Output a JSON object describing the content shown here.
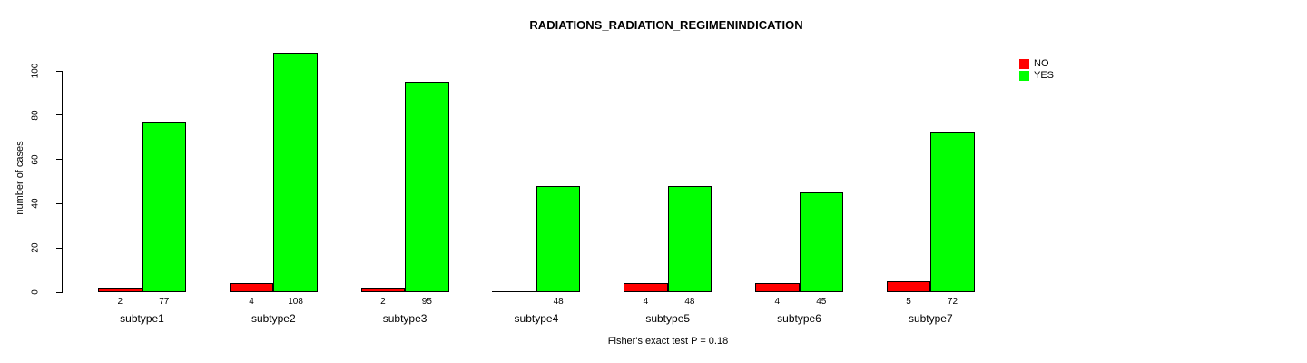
{
  "chart_data": {
    "type": "bar",
    "title": "RADIATIONS_RADIATION_REGIMENINDICATION",
    "ylabel": "number of cases",
    "ylim": [
      0,
      108
    ],
    "yticks": [
      0,
      20,
      40,
      60,
      80,
      100
    ],
    "grid": false,
    "categories": [
      "subtype1",
      "subtype2",
      "subtype3",
      "subtype4",
      "subtype5",
      "subtype6",
      "subtype7"
    ],
    "series": [
      {
        "name": "NO",
        "color": "#ff0000",
        "values": [
          2,
          4,
          2,
          0,
          4,
          4,
          5
        ],
        "bar_labels": [
          "2",
          "4",
          "2",
          "",
          "4",
          "4",
          "5"
        ]
      },
      {
        "name": "YES",
        "color": "#00ff00",
        "values": [
          77,
          108,
          95,
          48,
          48,
          45,
          72
        ],
        "bar_labels": [
          "77",
          "108",
          "95",
          "48",
          "48",
          "45",
          "72"
        ]
      }
    ],
    "legend": {
      "position": "top-right",
      "entries": [
        {
          "label": "NO",
          "color": "#ff0000"
        },
        {
          "label": "YES",
          "color": "#00ff00"
        }
      ]
    },
    "annotation": "Fisher's exact test P = 0.18"
  }
}
